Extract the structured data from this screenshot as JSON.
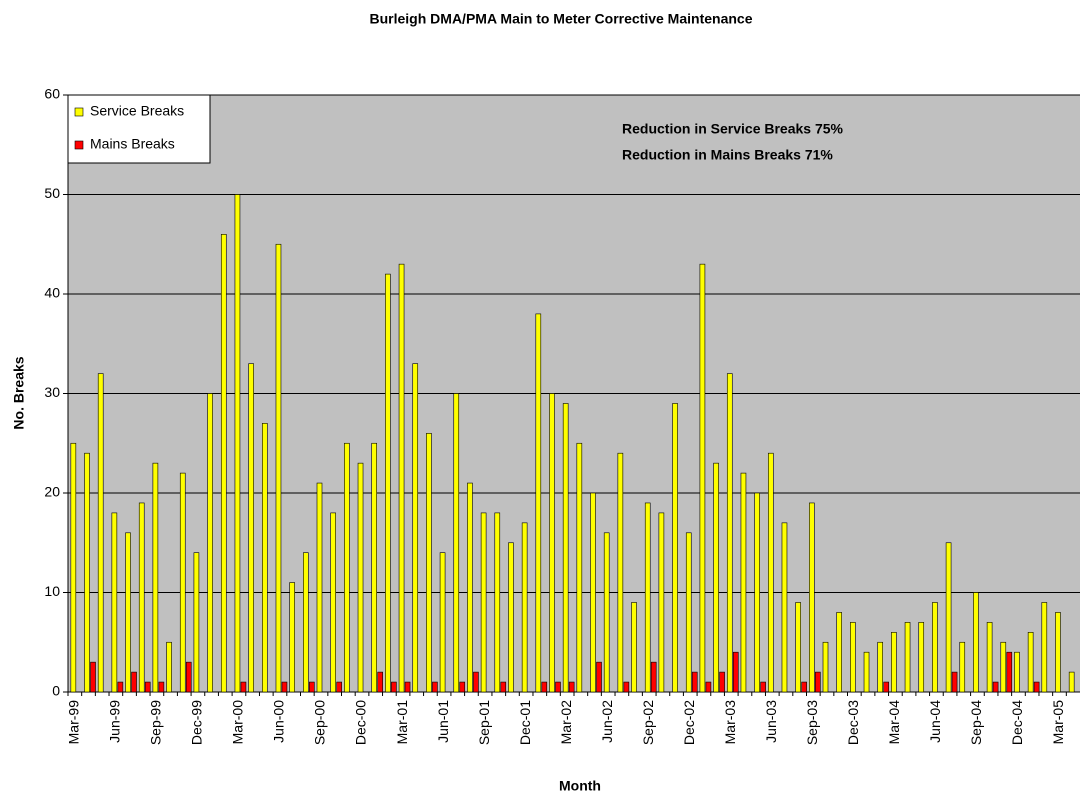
{
  "chart_data": {
    "type": "bar",
    "title": "Burleigh DMA/PMA Main to Meter Corrective Maintenance",
    "x_label": "Month",
    "y_label": "No. Breaks",
    "annotations": [
      "Reduction in Service Breaks 75%",
      "Reduction in Mains Breaks 71%"
    ],
    "categories": [
      "Mar-99",
      null,
      null,
      "Jun-99",
      null,
      null,
      "Sep-99",
      null,
      null,
      "Dec-99",
      null,
      null,
      "Mar-00",
      null,
      null,
      "Jun-00",
      null,
      null,
      "Sep-00",
      null,
      null,
      "Dec-00",
      null,
      null,
      "Mar-01",
      null,
      null,
      "Jun-01",
      null,
      null,
      "Sep-01",
      null,
      null,
      "Dec-01",
      null,
      null,
      "Mar-02",
      null,
      null,
      "Jun-02",
      null,
      null,
      "Sep-02",
      null,
      null,
      "Dec-02",
      null,
      null,
      "Mar-03",
      null,
      null,
      "Jun-03",
      null,
      null,
      "Sep-03",
      null,
      null,
      "Dec-03",
      null,
      null,
      "Mar-04",
      null,
      null,
      "Jun-04",
      null,
      null,
      "Sep-04",
      null,
      null,
      "Dec-04",
      null,
      null,
      "Mar-05",
      null
    ],
    "series": [
      {
        "name": "Service Breaks",
        "color": "#ffff00",
        "values": [
          25,
          24,
          32,
          18,
          16,
          19,
          23,
          5,
          22,
          14,
          30,
          46,
          50,
          33,
          27,
          45,
          11,
          14,
          21,
          18,
          25,
          23,
          25,
          42,
          43,
          33,
          26,
          14,
          30,
          21,
          18,
          18,
          15,
          17,
          38,
          30,
          29,
          25,
          20,
          16,
          24,
          9,
          19,
          18,
          29,
          16,
          43,
          23,
          32,
          22,
          20,
          24,
          17,
          9,
          19,
          5,
          8,
          7,
          4,
          5,
          6,
          7,
          7,
          9,
          15,
          5,
          10,
          7,
          5,
          4,
          6,
          9,
          8,
          2
        ]
      },
      {
        "name": "Mains Breaks",
        "color": "#ff0000",
        "values": [
          0,
          3,
          0,
          1,
          2,
          1,
          1,
          0,
          3,
          0,
          0,
          0,
          1,
          0,
          0,
          1,
          0,
          1,
          0,
          1,
          0,
          0,
          2,
          1,
          1,
          0,
          1,
          0,
          1,
          2,
          0,
          1,
          0,
          0,
          1,
          1,
          1,
          0,
          3,
          0,
          1,
          0,
          3,
          0,
          0,
          2,
          1,
          2,
          4,
          0,
          1,
          0,
          0,
          1,
          2,
          0,
          0,
          0,
          0,
          1,
          0,
          0,
          0,
          0,
          2,
          0,
          0,
          1,
          4,
          0,
          1,
          0,
          0,
          0
        ]
      }
    ],
    "ylim": [
      0,
      60
    ],
    "yticks": [
      0,
      10,
      20,
      30,
      40,
      50,
      60
    ],
    "grid": true,
    "legend": "top-left"
  }
}
